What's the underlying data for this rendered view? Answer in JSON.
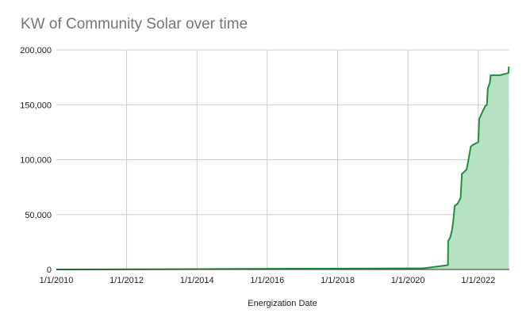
{
  "chart_data": {
    "type": "area",
    "title": "KW of Community Solar over time",
    "xlabel": "Energization Date",
    "ylabel": "",
    "x_ticks": [
      "1/1/2010",
      "1/1/2012",
      "1/1/2014",
      "1/1/2016",
      "1/1/2018",
      "1/1/2020",
      "1/1/2022"
    ],
    "y_ticks": [
      "0",
      "50,000",
      "100,000",
      "150,000",
      "200,000"
    ],
    "xlim": [
      "2010-01-01",
      "2022-11-20"
    ],
    "ylim": [
      0,
      200000
    ],
    "grid": true,
    "legend": "none",
    "colors": {
      "line": "#1e8e3e",
      "fill": "#b7e1c3",
      "grid": "#cccccc",
      "axis": "#333333"
    },
    "series": [
      {
        "points": [
          [
            "2010-01-01",
            0
          ],
          [
            "2012-06-01",
            200
          ],
          [
            "2015-01-01",
            500
          ],
          [
            "2017-01-01",
            700
          ],
          [
            "2019-01-01",
            900
          ],
          [
            "2020-06-01",
            1000
          ],
          [
            "2020-09-01",
            2000
          ],
          [
            "2021-02-20",
            4000
          ],
          [
            "2021-02-22",
            26000
          ],
          [
            "2021-03-15",
            29000
          ],
          [
            "2021-04-01",
            35000
          ],
          [
            "2021-04-15",
            43000
          ],
          [
            "2021-05-01",
            58000
          ],
          [
            "2021-06-01",
            60000
          ],
          [
            "2021-07-01",
            65000
          ],
          [
            "2021-07-15",
            87000
          ],
          [
            "2021-09-01",
            91000
          ],
          [
            "2021-09-15",
            97000
          ],
          [
            "2021-10-15",
            112000
          ],
          [
            "2021-11-15",
            114000
          ],
          [
            "2022-01-01",
            116000
          ],
          [
            "2022-01-10",
            137000
          ],
          [
            "2022-02-15",
            144000
          ],
          [
            "2022-03-15",
            149000
          ],
          [
            "2022-04-01",
            150000
          ],
          [
            "2022-04-10",
            165000
          ],
          [
            "2022-05-01",
            170000
          ],
          [
            "2022-05-10",
            177000
          ],
          [
            "2022-08-15",
            177000
          ],
          [
            "2022-11-10",
            179000
          ],
          [
            "2022-11-15",
            185000
          ]
        ]
      }
    ]
  }
}
